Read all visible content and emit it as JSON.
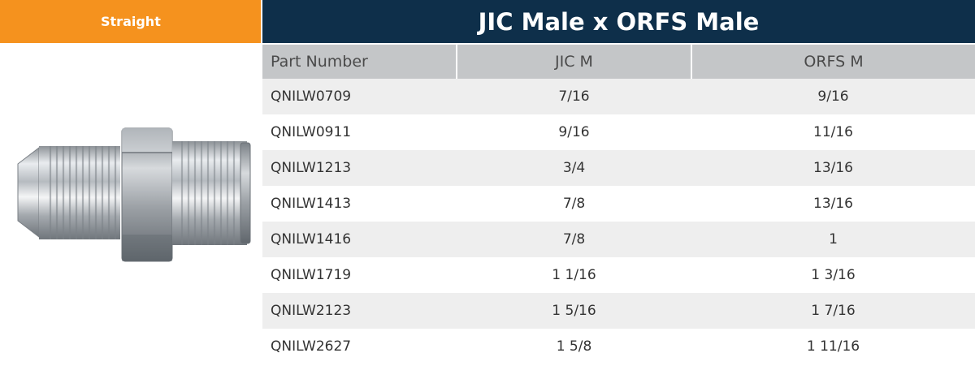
{
  "tag": {
    "label": "Straight"
  },
  "title": "JIC Male x ORFS Male",
  "table": {
    "headers": [
      "Part Number",
      "JIC M",
      "ORFS M"
    ],
    "rows": [
      [
        "QNILW0709",
        "7/16",
        "9/16"
      ],
      [
        "QNILW0911",
        "9/16",
        "11/16"
      ],
      [
        "QNILW1213",
        "3/4",
        "13/16"
      ],
      [
        "QNILW1413",
        "7/8",
        "13/16"
      ],
      [
        "QNILW1416",
        "7/8",
        "1"
      ],
      [
        "QNILW1719",
        "1 1/16",
        "1 3/16"
      ],
      [
        "QNILW2123",
        "1 5/16",
        "1 7/16"
      ],
      [
        "QNILW2627",
        "1 5/8",
        "1 11/16"
      ]
    ]
  }
}
